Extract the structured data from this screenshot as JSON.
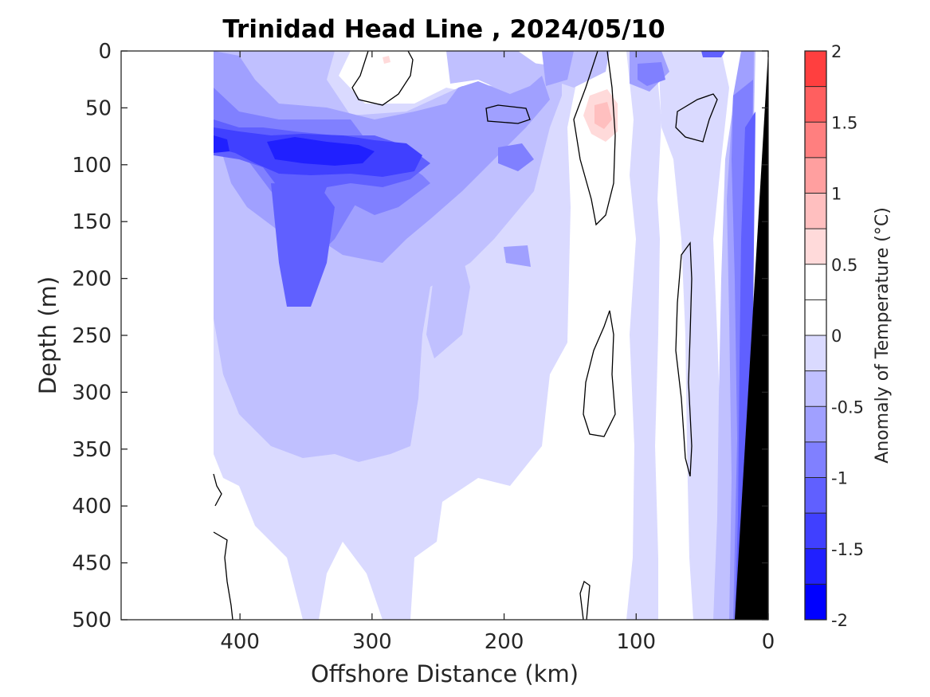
{
  "chart_data": {
    "type": "heatmap",
    "title": "Trinidad Head Line , 2024/05/10",
    "xlabel": "Offshore Distance (km)",
    "ylabel": "Depth (m)",
    "xlim": [
      490,
      0
    ],
    "ylim": [
      0,
      500
    ],
    "x_reversed": true,
    "y_reversed": true,
    "x_ticks": [
      "400",
      "300",
      "200",
      "100",
      "0"
    ],
    "x_tick_values": [
      400,
      300,
      200,
      100,
      0
    ],
    "y_ticks": [
      "0",
      "50",
      "100",
      "150",
      "200",
      "250",
      "300",
      "350",
      "400",
      "450",
      "500"
    ],
    "y_tick_values": [
      0,
      50,
      100,
      150,
      200,
      250,
      300,
      350,
      400,
      450,
      500
    ],
    "data_x_range_km": [
      420,
      0
    ],
    "colorbar": {
      "label": "Anomaly of Temperature (°C)",
      "range": [
        -2,
        2
      ],
      "ticks": [
        "2",
        "1.5",
        "1",
        "0.5",
        "0",
        "-0.5",
        "-1",
        "-1.5",
        "-2"
      ],
      "tick_values": [
        2,
        1.5,
        1,
        0.5,
        0,
        -0.5,
        -1,
        -1.5,
        -2
      ],
      "levels": [
        -2,
        -1.75,
        -1.5,
        -1.25,
        -1,
        -0.75,
        -0.5,
        -0.25,
        0,
        0.25,
        0.5,
        0.75,
        1,
        1.25,
        1.5,
        1.75,
        2
      ],
      "colors": [
        "#0000ff",
        "#2020ff",
        "#4040ff",
        "#6060ff",
        "#8080ff",
        "#a0a0ff",
        "#c0c0ff",
        "#dadaff",
        "#ffffff",
        "#ffffff",
        "#ffdada",
        "#ffbfbf",
        "#ff9f9f",
        "#ff7f7f",
        "#ff5f5f",
        "#ff3f3f",
        "#ff0000"
      ]
    },
    "features": [
      {
        "name": "cold core",
        "x_km": [
          400,
          270
        ],
        "depth_m": [
          60,
          110
        ],
        "anomaly": -1.75
      },
      {
        "name": "warm patch",
        "x_km": 125,
        "depth_m": 60,
        "anomaly": 0.6
      },
      {
        "name": "bathymetry",
        "color": "#000000",
        "from_x_km": 30,
        "to_x_km": 0
      }
    ]
  }
}
